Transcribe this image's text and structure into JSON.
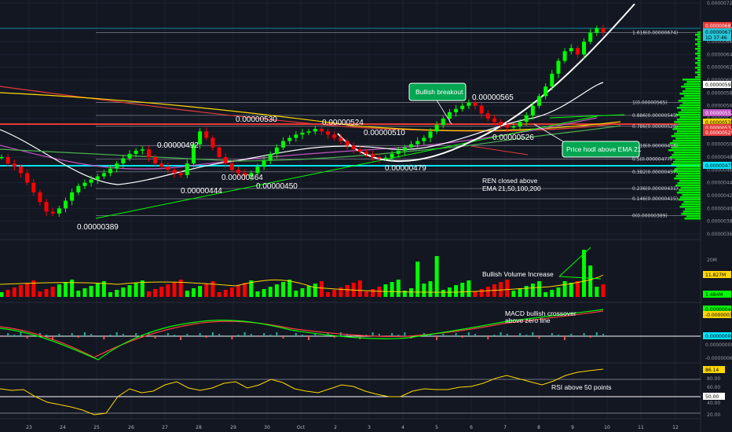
{
  "colors": {
    "background": "#131722",
    "grid": "#1e2230",
    "bull": "#00ff00",
    "bear": "#ff0000",
    "ema21": "#ffffff",
    "ema50": "#c154c1",
    "ema100": "#ffd700",
    "ema200": "#e63a3a",
    "fib_line": "#9598a1",
    "support_line": "#e53935",
    "cyan_line": "#00e5ff",
    "callout_bg": "#00a651",
    "rsi": "#ffd700",
    "macd": "#00ff00",
    "signal": "#ff3d3d",
    "volume_ma": "#ffd700"
  },
  "price_axis": {
    "ticks": [
      "0.00000720",
      "0.00000680",
      "0.00000660",
      "0.00000640",
      "0.00000620",
      "0.00000600",
      "0.00000580",
      "0.00000560",
      "0.00000540",
      "0.00000520",
      "0.00000500",
      "0.00000480",
      "0.00000460",
      "0.00000440",
      "0.00000420",
      "0.00000400",
      "0.00000380",
      "0.00000360"
    ],
    "badges": [
      {
        "text": "0.00000681",
        "bg": "#e63a3a",
        "fg": "#ffffff"
      },
      {
        "text": "0.00000675",
        "bg": "#26c6da",
        "fg": "#000000"
      },
      {
        "text": "1D 37:46",
        "bg": "#26c6da",
        "fg": "#000000"
      },
      {
        "text": "0.00000594",
        "bg": "#ffffff",
        "fg": "#000000"
      },
      {
        "text": "0.00000552",
        "bg": "#c154c1",
        "fg": "#ffffff"
      },
      {
        "text": "0.00000537",
        "bg": "#ffd700",
        "fg": "#000000"
      },
      {
        "text": "0.00000532",
        "bg": "#e63a3a",
        "fg": "#ffffff"
      },
      {
        "text": "0.00000525",
        "bg": "#e63a3a",
        "fg": "#ffffff"
      },
      {
        "text": "0.00000471",
        "bg": "#00e5ff",
        "fg": "#000000"
      }
    ]
  },
  "date_axis": [
    "23",
    "24",
    "25",
    "26",
    "27",
    "28",
    "29",
    "30",
    "Oct",
    "2",
    "3",
    "4",
    "5",
    "6",
    "7",
    "8",
    "9",
    "10",
    "11",
    "12"
  ],
  "fib_levels": [
    {
      "label": "1.618(0.00000674)",
      "value": 6.74e-06
    },
    {
      "label": "1(0.00000565)",
      "value": 5.65e-06
    },
    {
      "label": "0.886(0.00000545)",
      "value": 5.45e-06
    },
    {
      "label": "0.786(0.00000528)",
      "value": 5.28e-06
    },
    {
      "label": "0.618(0.00000498)",
      "value": 4.98e-06
    },
    {
      "label": "0.5(0.00000477)",
      "value": 4.77e-06
    },
    {
      "label": "0.382(0.00000457)",
      "value": 4.57e-06
    },
    {
      "label": "0.236(0.00000431)",
      "value": 4.31e-06
    },
    {
      "label": "0.146(0.00000415)",
      "value": 4.15e-06
    },
    {
      "label": "0(0.00000389)",
      "value": 3.89e-06
    }
  ],
  "price_labels": [
    {
      "text": "0.00000389"
    },
    {
      "text": "0.00000492"
    },
    {
      "text": "0.00000444"
    },
    {
      "text": "0.00000464"
    },
    {
      "text": "0.00000530"
    },
    {
      "text": "0.00000450"
    },
    {
      "text": "0.00000524"
    },
    {
      "text": "0.00000510"
    },
    {
      "text": "0.00000479"
    },
    {
      "text": "0.00000565"
    },
    {
      "text": "0.00000526"
    }
  ],
  "annotations": {
    "ren_closed_line1": "REN closed above",
    "ren_closed_line2": "EMA 21,50,100,200",
    "volume_note": "Bullish Volume Increase",
    "macd_note_line1": "MACD bullish crossover",
    "macd_note_line2": "above zero line",
    "rsi_note": "RSI above 50 points",
    "callout_breakout": "Bullish breakout",
    "callout_hodl": "Price hodl above EMA 21"
  },
  "volume_axis": {
    "ticks": [
      "20M"
    ],
    "badges": [
      {
        "text": "11.827M",
        "bg": "#ffd700",
        "fg": "#000000"
      },
      {
        "text": "1.484M",
        "bg": "#00ff00",
        "fg": "#000000"
      }
    ]
  },
  "macd_axis": {
    "ticks": [
      "-0.00000062"
    ],
    "badges": [
      {
        "text": "0.00000041",
        "bg": "#00ff00",
        "fg": "#000000"
      },
      {
        "text": "-0.00000037",
        "bg": "#ffd700",
        "fg": "#000000"
      },
      {
        "text": "0.00000004",
        "bg": "#00e5ff",
        "fg": "#000000"
      },
      {
        "text": "0.00000000",
        "bg": "none",
        "fg": "#9598a1"
      }
    ]
  },
  "rsi_axis": {
    "ticks": [
      "80.00",
      "60.00",
      "40.00",
      "20.00"
    ],
    "badges": [
      {
        "text": "86.14",
        "bg": "#ffd700",
        "fg": "#000000"
      },
      {
        "text": "50.00",
        "bg": "#ffffff",
        "fg": "#000000"
      }
    ]
  },
  "chart_data": {
    "type": "candlestick",
    "title": "",
    "y_range": [
      3.6e-06,
      7.2e-06
    ],
    "rsi_levels": [
      70,
      50,
      30
    ],
    "rsi_last": 86.14,
    "volume_last": "11.827M",
    "candles_close_path": [
      480,
      470,
      465,
      455,
      440,
      425,
      410,
      395,
      392,
      400,
      412,
      425,
      435,
      440,
      445,
      450,
      455,
      462,
      470,
      478,
      485,
      490,
      492,
      480,
      470,
      465,
      460,
      455,
      452,
      470,
      500,
      520,
      510,
      495,
      480,
      470,
      460,
      455,
      450,
      455,
      465,
      475,
      485,
      495,
      505,
      510,
      515,
      518,
      520,
      524,
      520,
      515,
      510,
      505,
      498,
      492,
      488,
      485,
      480,
      478,
      479,
      485,
      490,
      495,
      500,
      505,
      510,
      520,
      530,
      540,
      550,
      555,
      560,
      565,
      560,
      548,
      540,
      535,
      530,
      526,
      528,
      535,
      545,
      560,
      575,
      590,
      610,
      630,
      645,
      650,
      640,
      660,
      674,
      681,
      675
    ]
  }
}
